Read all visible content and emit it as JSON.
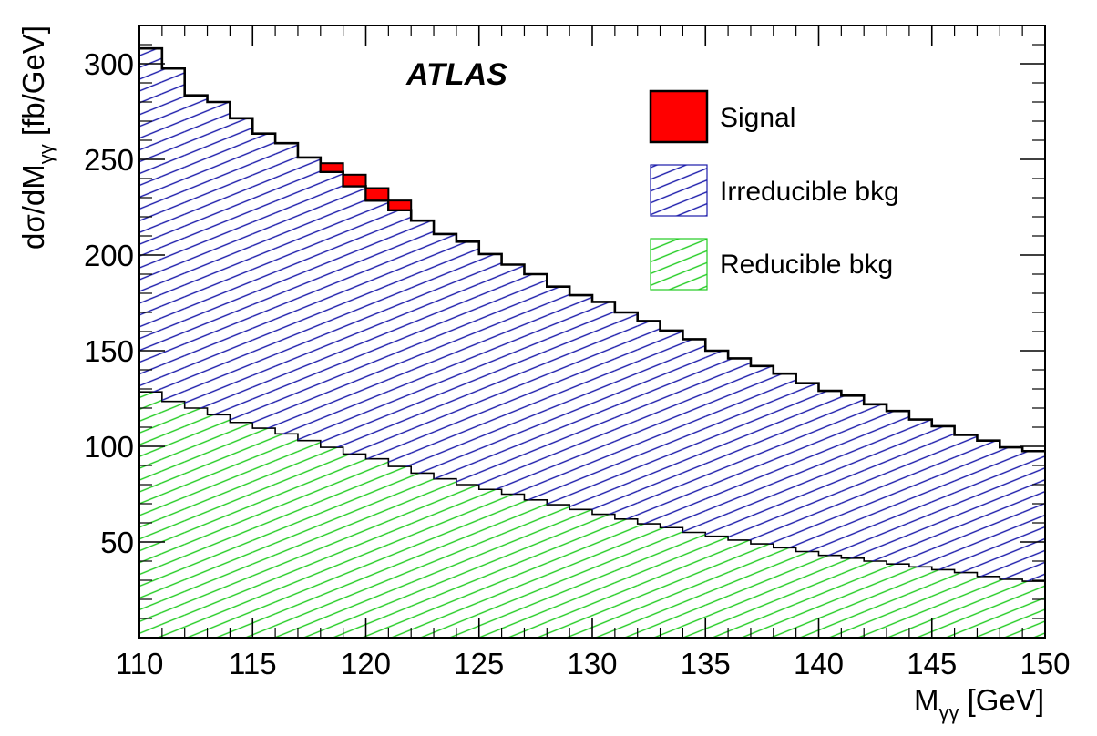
{
  "chart_data": {
    "type": "area",
    "experiment_label": "ATLAS",
    "xlabel": {
      "main": "M",
      "sub": "γγ",
      "rest": " [GeV]"
    },
    "ylabel": {
      "main": "dσ/dM",
      "sub": "γγ",
      "rest": " [fb/GeV]"
    },
    "xlim": [
      110,
      150
    ],
    "ylim": [
      0,
      320
    ],
    "x_ticks": [
      110,
      115,
      120,
      125,
      130,
      135,
      140,
      145,
      150
    ],
    "y_ticks": [
      50,
      100,
      150,
      200,
      250,
      300
    ],
    "bin_width": 1,
    "bin_lower_edges": [
      110,
      111,
      112,
      113,
      114,
      115,
      116,
      117,
      118,
      119,
      120,
      121,
      122,
      123,
      124,
      125,
      126,
      127,
      128,
      129,
      130,
      131,
      132,
      133,
      134,
      135,
      136,
      137,
      138,
      139,
      140,
      141,
      142,
      143,
      144,
      145,
      146,
      147,
      148,
      149
    ],
    "series": [
      {
        "name": "Reducible bkg",
        "style": "hatch-green",
        "color": "#22cc22",
        "values": [
          128.5,
          123.5,
          120,
          116.5,
          112.5,
          109.5,
          106.5,
          103,
          99.5,
          96,
          93.5,
          89.5,
          86,
          83,
          80,
          77.5,
          75,
          72,
          69.5,
          67,
          64.5,
          62,
          59.5,
          57.5,
          55,
          53,
          51,
          49,
          47,
          45,
          43,
          41.5,
          40,
          38.5,
          37,
          35.5,
          34,
          32,
          30.5,
          29.5
        ]
      },
      {
        "name": "Irreducible bkg",
        "style": "hatch-blue",
        "color": "#1a1aaa",
        "values": [
          179.5,
          174,
          163.5,
          163.5,
          159,
          154,
          152,
          148,
          144,
          140,
          135,
          134,
          132,
          128,
          127,
          123,
          120,
          118,
          114,
          112,
          111,
          108,
          106,
          103,
          101,
          97,
          95,
          93,
          91,
          88,
          86,
          85,
          82,
          80,
          77,
          75,
          72,
          71,
          69,
          68
        ]
      },
      {
        "name": "Signal",
        "style": "solid-red",
        "color": "#ff0000",
        "values": [
          0,
          0,
          0,
          0,
          0,
          0,
          0,
          0,
          4.5,
          6,
          6.5,
          5,
          0,
          0,
          0,
          0,
          0,
          0,
          0,
          0,
          0,
          0,
          0,
          0,
          0,
          0,
          0,
          0,
          0,
          0,
          0,
          0,
          0,
          0,
          0,
          0,
          0,
          0,
          0,
          0
        ]
      }
    ],
    "legend": {
      "placement": "top-right",
      "entries": [
        {
          "label": "Signal",
          "style": "solid-red"
        },
        {
          "label": "Irreducible bkg",
          "style": "hatch-blue"
        },
        {
          "label": "Reducible bkg",
          "style": "hatch-green"
        }
      ]
    },
    "grid": false,
    "stacked": true
  }
}
